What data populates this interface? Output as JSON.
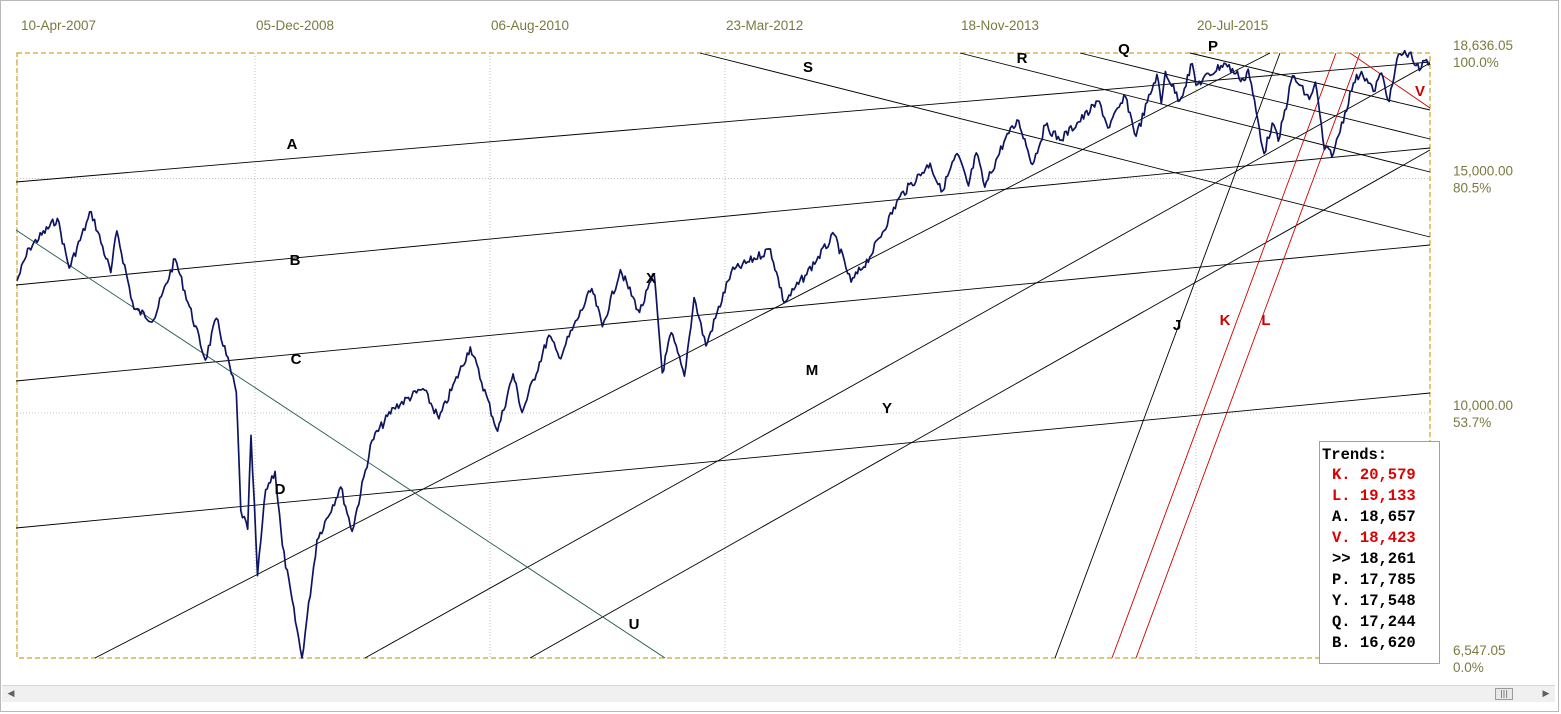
{
  "chart_data": {
    "type": "line",
    "x_tick_labels": [
      "10-Apr-2007",
      "05-Dec-2008",
      "06-Aug-2010",
      "23-Mar-2012",
      "18-Nov-2013",
      "20-Jul-2015"
    ],
    "price_labels": [
      {
        "value": 18636.05,
        "text": "18,636.05",
        "pct": "100.0%"
      },
      {
        "value": 15000,
        "text": "15,000.00",
        "pct": "80.5%"
      },
      {
        "value": 10000,
        "text": "10,000.00",
        "pct": "53.7%"
      },
      {
        "value": 6547.05,
        "text": "6,547.05",
        "pct": "0.0%"
      }
    ],
    "ylim": [
      6547.05,
      18636.05
    ],
    "scale": "log",
    "grid": true,
    "series": [
      {
        "color": "#0d1561",
        "points": [
          [
            "2007-04-10",
            12570
          ],
          [
            "2007-05-10",
            13300
          ],
          [
            "2007-07-18",
            14000
          ],
          [
            "2007-08-16",
            12850
          ],
          [
            "2007-10-09",
            14165
          ],
          [
            "2007-11-26",
            12750
          ],
          [
            "2007-12-11",
            13700
          ],
          [
            "2008-01-22",
            11970
          ],
          [
            "2008-03-10",
            11750
          ],
          [
            "2008-05-02",
            13050
          ],
          [
            "2008-07-15",
            10960
          ],
          [
            "2008-08-11",
            11780
          ],
          [
            "2008-09-29",
            10365
          ],
          [
            "2008-10-10",
            8450
          ],
          [
            "2008-10-27",
            8180
          ],
          [
            "2008-11-04",
            9620
          ],
          [
            "2008-11-20",
            7550
          ],
          [
            "2008-12-10",
            8760
          ],
          [
            "2009-01-02",
            9040
          ],
          [
            "2009-01-20",
            7950
          ],
          [
            "2009-03-09",
            6547
          ],
          [
            "2009-04-15",
            8030
          ],
          [
            "2009-06-12",
            8800
          ],
          [
            "2009-07-10",
            8150
          ],
          [
            "2009-08-28",
            9540
          ],
          [
            "2009-10-20",
            10090
          ],
          [
            "2009-12-31",
            10430
          ],
          [
            "2010-02-08",
            9900
          ],
          [
            "2010-04-26",
            11210
          ],
          [
            "2010-07-02",
            9690
          ],
          [
            "2010-08-09",
            10700
          ],
          [
            "2010-08-31",
            10010
          ],
          [
            "2010-11-05",
            11440
          ],
          [
            "2010-11-30",
            11000
          ],
          [
            "2011-02-18",
            12400
          ],
          [
            "2011-03-16",
            11610
          ],
          [
            "2011-04-29",
            12810
          ],
          [
            "2011-06-15",
            11900
          ],
          [
            "2011-07-21",
            12720
          ],
          [
            "2011-08-10",
            10720
          ],
          [
            "2011-09-01",
            11490
          ],
          [
            "2011-10-03",
            10660
          ],
          [
            "2011-10-27",
            12210
          ],
          [
            "2011-11-25",
            11230
          ],
          [
            "2012-01-26",
            12760
          ],
          [
            "2012-05-01",
            13280
          ],
          [
            "2012-06-04",
            12100
          ],
          [
            "2012-07-25",
            12680
          ],
          [
            "2012-10-05",
            13610
          ],
          [
            "2012-11-15",
            12540
          ],
          [
            "2012-12-31",
            13100
          ],
          [
            "2013-03-15",
            14540
          ],
          [
            "2013-05-28",
            15400
          ],
          [
            "2013-06-24",
            14660
          ],
          [
            "2013-08-02",
            15660
          ],
          [
            "2013-08-30",
            14810
          ],
          [
            "2013-09-18",
            15680
          ],
          [
            "2013-10-09",
            14780
          ],
          [
            "2013-11-29",
            16090
          ],
          [
            "2013-12-31",
            16580
          ],
          [
            "2014-02-03",
            15370
          ],
          [
            "2014-03-07",
            16450
          ],
          [
            "2014-04-11",
            16030
          ],
          [
            "2014-07-17",
            17140
          ],
          [
            "2014-08-07",
            16370
          ],
          [
            "2014-09-19",
            17280
          ],
          [
            "2014-10-15",
            16140
          ],
          [
            "2014-12-05",
            17960
          ],
          [
            "2014-12-16",
            17070
          ],
          [
            "2014-12-26",
            18050
          ],
          [
            "2015-01-30",
            17160
          ],
          [
            "2015-03-02",
            18290
          ],
          [
            "2015-03-11",
            17630
          ],
          [
            "2015-05-19",
            18310
          ],
          [
            "2015-07-07",
            17770
          ],
          [
            "2015-07-17",
            18120
          ],
          [
            "2015-08-25",
            15660
          ],
          [
            "2015-09-14",
            16510
          ],
          [
            "2015-09-29",
            16000
          ],
          [
            "2015-11-03",
            17920
          ],
          [
            "2015-12-14",
            17200
          ],
          [
            "2015-12-29",
            17720
          ],
          [
            "2016-01-20",
            15770
          ],
          [
            "2016-02-11",
            15660
          ],
          [
            "2016-03-31",
            17690
          ],
          [
            "2016-04-20",
            18050
          ],
          [
            "2016-05-19",
            17440
          ],
          [
            "2016-06-08",
            18000
          ],
          [
            "2016-06-27",
            17140
          ],
          [
            "2016-07-20",
            18600
          ],
          [
            "2016-08-15",
            18636
          ],
          [
            "2016-09-09",
            18080
          ],
          [
            "2016-09-22",
            18390
          ],
          [
            "2016-10-05",
            18280
          ]
        ]
      }
    ],
    "trend_lines": [
      {
        "label": "A",
        "color": "#000000",
        "p1": [
          16,
          182
        ],
        "p2": [
          1430,
          62
        ],
        "label_pos": [
          292,
          149
        ]
      },
      {
        "label": "B",
        "color": "#000000",
        "p1": [
          16,
          285
        ],
        "p2": [
          1430,
          148
        ],
        "label_pos": [
          295,
          265
        ]
      },
      {
        "label": "C",
        "color": "#000000",
        "p1": [
          16,
          381
        ],
        "p2": [
          1430,
          245
        ],
        "label_pos": [
          296,
          364
        ]
      },
      {
        "label": "D",
        "color": "#000000",
        "p1": [
          16,
          528
        ],
        "p2": [
          1430,
          393
        ],
        "label_pos": [
          280,
          494
        ]
      },
      {
        "label": "X",
        "color": "#000000",
        "p1": [
          95,
          658
        ],
        "p2": [
          1270,
          53
        ],
        "label_pos": [
          651,
          283
        ]
      },
      {
        "label": "M",
        "color": "#000000",
        "p1": [
          365,
          658
        ],
        "p2": [
          1430,
          63
        ],
        "label_pos": [
          812,
          375
        ]
      },
      {
        "label": "Y",
        "color": "#000000",
        "p1": [
          530,
          658
        ],
        "p2": [
          1430,
          150
        ],
        "label_pos": [
          887,
          413
        ]
      },
      {
        "label": "U",
        "color": "#1f5a4a",
        "p1": [
          16,
          230
        ],
        "p2": [
          665,
          658
        ],
        "label_pos": [
          634,
          629
        ]
      },
      {
        "label": "S",
        "color": "#000000",
        "p1": [
          700,
          53
        ],
        "p2": [
          1430,
          237
        ],
        "label_pos": [
          808,
          72
        ]
      },
      {
        "label": "R",
        "color": "#000000",
        "p1": [
          960,
          53
        ],
        "p2": [
          1430,
          172
        ],
        "label_pos": [
          1022,
          63
        ]
      },
      {
        "label": "Q",
        "color": "#000000",
        "p1": [
          1080,
          53
        ],
        "p2": [
          1430,
          139
        ],
        "label_pos": [
          1124,
          54
        ]
      },
      {
        "label": "P",
        "color": "#000000",
        "p1": [
          1190,
          53
        ],
        "p2": [
          1430,
          110
        ],
        "label_pos": [
          1213,
          51
        ]
      },
      {
        "label": "J",
        "color": "#000000",
        "p1": [
          1055,
          658
        ],
        "p2": [
          1280,
          53
        ],
        "label_pos": [
          1177,
          330
        ]
      },
      {
        "label": "K",
        "color": "#cc0000",
        "p1": [
          1112,
          658
        ],
        "p2": [
          1336,
          53
        ],
        "label_pos": [
          1225,
          325
        ]
      },
      {
        "label": "L",
        "color": "#cc0000",
        "p1": [
          1136,
          658
        ],
        "p2": [
          1360,
          53
        ],
        "label_pos": [
          1266,
          325
        ]
      },
      {
        "label": "V",
        "color": "#cc0000",
        "p1": [
          1350,
          53
        ],
        "p2": [
          1430,
          108
        ],
        "label_pos": [
          1420,
          96
        ]
      }
    ]
  },
  "legend": {
    "title": "Trends:",
    "items": [
      {
        "text": "K. 20,579",
        "color": "#dd0000"
      },
      {
        "text": "L. 19,133",
        "color": "#dd0000"
      },
      {
        "text": "A. 18,657",
        "color": "#000000"
      },
      {
        "text": "V. 18,423",
        "color": "#dd0000"
      },
      {
        "text": ">> 18,261",
        "color": "#000000"
      },
      {
        "text": "P. 17,785",
        "color": "#000000"
      },
      {
        "text": "Y. 17,548",
        "color": "#000000"
      },
      {
        "text": "Q. 17,244",
        "color": "#000000"
      },
      {
        "text": "B. 16,620",
        "color": "#000000"
      }
    ]
  },
  "colors": {
    "axis_text": "#7a7a40",
    "frame": "#c9a227",
    "grid": "#b0b0b0",
    "price_line": "#0d1561"
  },
  "scrollbar": {
    "left_icon": "arrow-left-icon",
    "right_icon": "arrow-right-icon",
    "thumb_icon": "grip-icon",
    "left_glyph": "◀",
    "right_glyph": "▶",
    "thumb_glyph": "|||"
  }
}
